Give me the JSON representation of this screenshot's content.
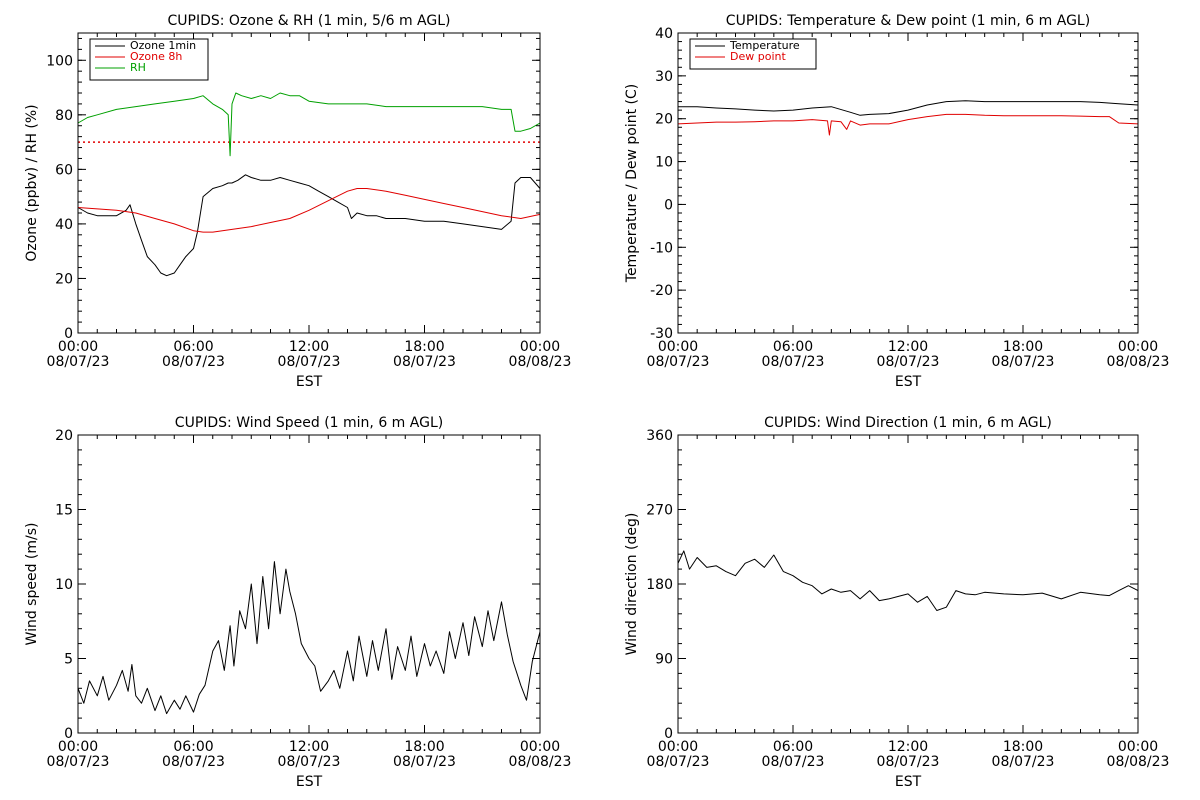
{
  "chart_data": [
    {
      "id": "ozone_rh",
      "type": "line",
      "title": "CUPIDS: Ozone & RH (1 min, 5/6 m AGL)",
      "xlabel": "EST",
      "ylabel": "Ozone (ppbv) / RH (%)",
      "xlim": [
        0,
        24
      ],
      "ylim": [
        0,
        110
      ],
      "yticks": [
        0,
        20,
        40,
        60,
        80,
        100
      ],
      "legend_position": "top-left",
      "reference_line": {
        "y": 70,
        "color": "#e00000",
        "style": "dotted"
      },
      "series": [
        {
          "name": "Ozone 1min",
          "color": "#000000",
          "x": [
            0,
            0.5,
            1,
            1.5,
            2,
            2.5,
            2.7,
            3,
            3.3,
            3.6,
            4,
            4.3,
            4.6,
            5,
            5.3,
            5.6,
            6,
            6.2,
            6.5,
            7,
            7.5,
            7.8,
            8,
            8.3,
            8.7,
            9,
            9.5,
            10,
            10.5,
            11,
            11.5,
            12,
            12.5,
            13,
            13.5,
            14,
            14.2,
            14.5,
            15,
            15.5,
            16,
            17,
            18,
            19,
            20,
            21,
            22,
            22.5,
            22.7,
            23,
            23.5,
            24
          ],
          "y": [
            46,
            44,
            43,
            43,
            43,
            45,
            47,
            40,
            34,
            28,
            25,
            22,
            21,
            22,
            25,
            28,
            31,
            37,
            50,
            53,
            54,
            55,
            55,
            56,
            58,
            57,
            56,
            56,
            57,
            56,
            55,
            54,
            52,
            50,
            48,
            46,
            42,
            44,
            43,
            43,
            42,
            42,
            41,
            41,
            40,
            39,
            38,
            41,
            55,
            57,
            57,
            53
          ]
        },
        {
          "name": "Ozone 8h",
          "color": "#e00000",
          "x": [
            0,
            1,
            2,
            3,
            4,
            5,
            6,
            6.5,
            7,
            8,
            9,
            10,
            11,
            12,
            13,
            14,
            14.5,
            15,
            16,
            17,
            18,
            19,
            20,
            21,
            22,
            23,
            24
          ],
          "y": [
            46,
            45.5,
            45,
            44,
            42,
            40,
            37.5,
            37,
            37,
            38,
            39,
            40.5,
            42,
            45,
            48.5,
            52,
            53,
            53,
            52,
            50.5,
            49,
            47.5,
            46,
            44.5,
            43,
            42,
            43.5
          ]
        },
        {
          "name": "RH",
          "color": "#00a000",
          "x": [
            0,
            0.5,
            1,
            2,
            3,
            4,
            5,
            6,
            6.5,
            7,
            7.5,
            7.8,
            7.9,
            8,
            8.2,
            8.5,
            9,
            9.5,
            10,
            10.5,
            11,
            11.5,
            12,
            13,
            14,
            15,
            16,
            17,
            18,
            19,
            20,
            21,
            22,
            22.5,
            22.7,
            23,
            23.5,
            24
          ],
          "y": [
            77,
            79,
            80,
            82,
            83,
            84,
            85,
            86,
            87,
            84,
            82,
            80,
            65,
            84,
            88,
            87,
            86,
            87,
            86,
            88,
            87,
            87,
            85,
            84,
            84,
            84,
            83,
            83,
            83,
            83,
            83,
            83,
            82,
            82,
            74,
            74,
            75,
            77
          ]
        }
      ]
    },
    {
      "id": "temp_dew",
      "type": "line",
      "title": "CUPIDS: Temperature & Dew point (1 min, 6 m AGL)",
      "xlabel": "EST",
      "ylabel": "Temperature / Dew point (C)",
      "xlim": [
        0,
        24
      ],
      "ylim": [
        -30,
        40
      ],
      "yticks": [
        -30,
        -20,
        -10,
        0,
        10,
        20,
        30,
        40
      ],
      "legend_position": "top-left",
      "series": [
        {
          "name": "Temperature",
          "color": "#000000",
          "x": [
            0,
            1,
            2,
            3,
            4,
            5,
            6,
            7,
            8,
            9,
            9.5,
            10,
            11,
            12,
            13,
            14,
            15,
            16,
            17,
            18,
            19,
            20,
            21,
            22,
            23,
            24
          ],
          "y": [
            22.8,
            22.8,
            22.5,
            22.3,
            22,
            21.8,
            22,
            22.5,
            22.8,
            21.5,
            20.8,
            21,
            21.2,
            22,
            23.2,
            24,
            24.2,
            24,
            24,
            24,
            24,
            24,
            24,
            23.8,
            23.5,
            23.2
          ]
        },
        {
          "name": "Dew point",
          "color": "#e00000",
          "x": [
            0,
            1,
            2,
            3,
            4,
            5,
            6,
            7,
            7.8,
            7.9,
            8,
            8.5,
            8.8,
            9,
            9.5,
            10,
            11,
            12,
            13,
            14,
            15,
            16,
            17,
            18,
            19,
            20,
            21,
            22,
            22.5,
            23,
            24
          ],
          "y": [
            18.8,
            19,
            19.2,
            19.2,
            19.3,
            19.5,
            19.5,
            19.8,
            19.5,
            16.2,
            19.5,
            19.3,
            17.5,
            19.5,
            18.5,
            18.8,
            18.8,
            19.8,
            20.5,
            21,
            21,
            20.8,
            20.7,
            20.7,
            20.7,
            20.7,
            20.6,
            20.5,
            20.5,
            19,
            18.8
          ]
        }
      ]
    },
    {
      "id": "wind_speed",
      "type": "line",
      "title": "CUPIDS: Wind Speed (1 min, 6 m AGL)",
      "xlabel": "EST",
      "ylabel": "Wind speed (m/s)",
      "xlim": [
        0,
        24
      ],
      "ylim": [
        0,
        20
      ],
      "yticks": [
        0,
        5,
        10,
        15,
        20
      ],
      "series": [
        {
          "name": "",
          "color": "#000000",
          "x": [
            0,
            0.3,
            0.6,
            1,
            1.3,
            1.6,
            2,
            2.3,
            2.6,
            2.8,
            3,
            3.3,
            3.6,
            4,
            4.3,
            4.6,
            5,
            5.3,
            5.6,
            6,
            6.3,
            6.6,
            7,
            7.3,
            7.6,
            7.9,
            8.1,
            8.4,
            8.7,
            9,
            9.3,
            9.6,
            9.9,
            10.2,
            10.5,
            10.8,
            11,
            11.3,
            11.6,
            12,
            12.3,
            12.6,
            13,
            13.3,
            13.6,
            14,
            14.3,
            14.6,
            15,
            15.3,
            15.6,
            16,
            16.3,
            16.6,
            17,
            17.3,
            17.6,
            18,
            18.3,
            18.6,
            19,
            19.3,
            19.6,
            20,
            20.3,
            20.6,
            21,
            21.3,
            21.6,
            22,
            22.3,
            22.6,
            23,
            23.3,
            23.6,
            24
          ],
          "y": [
            3,
            2,
            3.5,
            2.5,
            3.8,
            2.2,
            3.2,
            4.2,
            2.8,
            4.6,
            2.5,
            2,
            3,
            1.5,
            2.5,
            1.3,
            2.2,
            1.6,
            2.5,
            1.4,
            2.6,
            3.2,
            5.5,
            6.2,
            4.2,
            7.2,
            4.5,
            8.2,
            7,
            10,
            6,
            10.5,
            7,
            11.5,
            8,
            11,
            9.5,
            8,
            6,
            5,
            4.5,
            2.8,
            3.5,
            4.2,
            3,
            5.5,
            3.5,
            6.5,
            3.8,
            6.2,
            4.2,
            7,
            3.6,
            5.8,
            4.2,
            6.5,
            3.8,
            6,
            4.5,
            5.5,
            4,
            6.8,
            5,
            7.4,
            5.2,
            7.8,
            5.8,
            8.2,
            6.2,
            8.8,
            6.6,
            4.8,
            3.2,
            2.2,
            4.8,
            6.8
          ]
        }
      ]
    },
    {
      "id": "wind_dir",
      "type": "line",
      "title": "CUPIDS: Wind Direction (1 min, 6 m AGL)",
      "xlabel": "EST",
      "ylabel": "Wind direction (deg)",
      "xlim": [
        0,
        24
      ],
      "ylim": [
        0,
        360
      ],
      "yticks": [
        0,
        90,
        180,
        270,
        360
      ],
      "series": [
        {
          "name": "",
          "color": "#000000",
          "x": [
            0,
            0.3,
            0.6,
            1,
            1.5,
            2,
            2.5,
            3,
            3.5,
            4,
            4.5,
            5,
            5.5,
            6,
            6.5,
            7,
            7.5,
            8,
            8.5,
            9,
            9.5,
            10,
            10.5,
            11,
            11.5,
            12,
            12.5,
            13,
            13.5,
            14,
            14.5,
            15,
            15.5,
            16,
            17,
            18,
            19,
            20,
            21,
            22,
            22.5,
            23,
            23.5,
            24
          ],
          "y": [
            205,
            220,
            198,
            212,
            200,
            202,
            195,
            190,
            205,
            210,
            200,
            215,
            195,
            190,
            182,
            178,
            168,
            174,
            170,
            172,
            162,
            172,
            160,
            162,
            165,
            168,
            158,
            165,
            148,
            152,
            172,
            168,
            167,
            170,
            168,
            167,
            169,
            162,
            170,
            167,
            166,
            172,
            178,
            172
          ]
        }
      ]
    }
  ],
  "x_tick_labels": {
    "times": [
      "00:00",
      "06:00",
      "12:00",
      "18:00",
      "00:00"
    ],
    "dates": [
      "08/07/23",
      "08/07/23",
      "08/07/23",
      "08/07/23",
      "08/08/23"
    ]
  }
}
